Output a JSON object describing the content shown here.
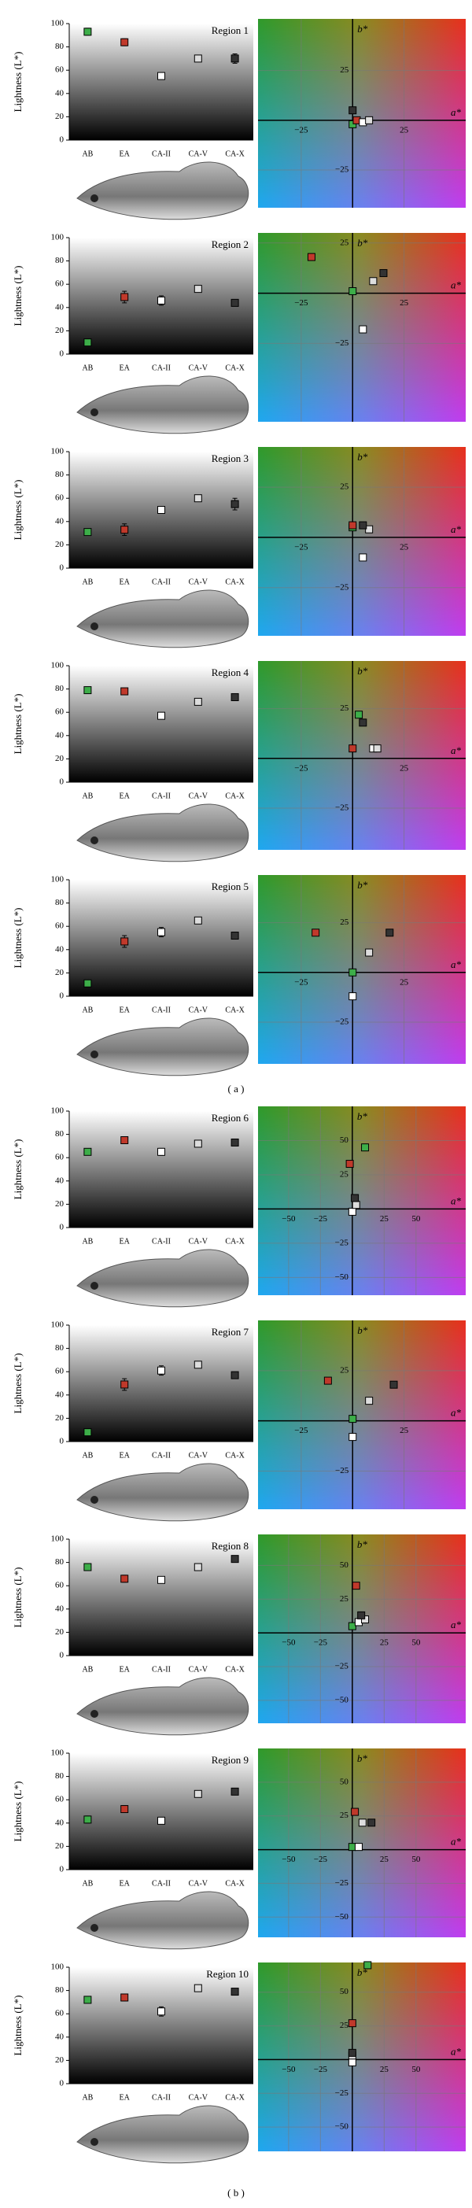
{
  "panels": [
    "( a )",
    "( b )"
  ],
  "chart_data": [
    {
      "type": "dot",
      "title": "Region 1",
      "ylabel": "Lightness (L*)",
      "categories": [
        "AB",
        "EA",
        "CA-II",
        "CA-V",
        "CA-X"
      ],
      "values": [
        93,
        84,
        55,
        70,
        70
      ],
      "errors": [
        3,
        3,
        2,
        2,
        4
      ],
      "colors": [
        "#3dae49",
        "#c0392b",
        "#ffffff",
        "#dddddd",
        "#333333"
      ],
      "ylim": [
        0,
        100
      ],
      "yticks": [
        0,
        20,
        40,
        60,
        80,
        100
      ]
    },
    {
      "type": "scatter",
      "xlabel": "a*",
      "ylabel": "b*",
      "x": [
        0,
        2,
        5,
        8,
        0
      ],
      "values": [
        -2,
        0,
        -1,
        0,
        5
      ],
      "colors": [
        "#3dae49",
        "#c0392b",
        "#ffffff",
        "#dddddd",
        "#333333"
      ],
      "xlim": [
        -46,
        55
      ],
      "ylim": [
        -44,
        51
      ],
      "xticks": [
        {
          "value": -25,
          "label": "−25"
        },
        25
      ],
      "yticks": [
        25,
        {
          "value": -25,
          "label": "−25"
        }
      ],
      "grid": true
    },
    {
      "type": "dot",
      "title": "Region 2",
      "ylabel": "Lightness (L*)",
      "categories": [
        "AB",
        "EA",
        "CA-II",
        "CA-V",
        "CA-X"
      ],
      "values": [
        10,
        49,
        46,
        56,
        44
      ],
      "errors": [
        2,
        5,
        4,
        2,
        2
      ],
      "colors": [
        "#3dae49",
        "#c0392b",
        "#ffffff",
        "#dddddd",
        "#333333"
      ],
      "ylim": [
        0,
        100
      ],
      "yticks": [
        0,
        20,
        40,
        60,
        80,
        100
      ]
    },
    {
      "type": "scatter",
      "xlabel": "a*",
      "ylabel": "b*",
      "x": [
        0,
        -20,
        5,
        10,
        15
      ],
      "values": [
        1,
        18,
        -18,
        6,
        10
      ],
      "colors": [
        "#3dae49",
        "#c0392b",
        "#ffffff",
        "#dddddd",
        "#333333"
      ],
      "xlim": [
        -46,
        55
      ],
      "ylim": [
        -64,
        30
      ],
      "xticks": [
        {
          "value": -25,
          "label": "−25"
        },
        25
      ],
      "yticks": [
        25,
        {
          "value": -25,
          "label": "−25"
        }
      ],
      "grid": true
    },
    {
      "type": "dot",
      "title": "Region 3",
      "ylabel": "Lightness (L*)",
      "categories": [
        "AB",
        "EA",
        "CA-II",
        "CA-V",
        "CA-X"
      ],
      "values": [
        31,
        33,
        50,
        60,
        55
      ],
      "errors": [
        2,
        5,
        3,
        2,
        5
      ],
      "colors": [
        "#3dae49",
        "#c0392b",
        "#ffffff",
        "#dddddd",
        "#333333"
      ],
      "ylim": [
        0,
        100
      ],
      "yticks": [
        0,
        20,
        40,
        60,
        80,
        100
      ]
    },
    {
      "type": "scatter",
      "xlabel": "a*",
      "ylabel": "b*",
      "x": [
        0,
        0,
        5,
        8,
        5
      ],
      "values": [
        5,
        6,
        -10,
        4,
        6
      ],
      "colors": [
        "#3dae49",
        "#c0392b",
        "#ffffff",
        "#dddddd",
        "#333333"
      ],
      "xlim": [
        -46,
        55
      ],
      "ylim": [
        -49,
        45
      ],
      "xticks": [
        {
          "value": -25,
          "label": "−25"
        },
        25
      ],
      "yticks": [
        25,
        {
          "value": -25,
          "label": "−25"
        }
      ],
      "grid": true
    },
    {
      "type": "dot",
      "title": "Region 4",
      "ylabel": "Lightness (L*)",
      "categories": [
        "AB",
        "EA",
        "CA-II",
        "CA-V",
        "CA-X"
      ],
      "values": [
        79,
        78,
        57,
        69,
        73
      ],
      "errors": [
        2,
        2,
        2,
        2,
        3
      ],
      "colors": [
        "#3dae49",
        "#c0392b",
        "#ffffff",
        "#dddddd",
        "#333333"
      ],
      "ylim": [
        0,
        100
      ],
      "yticks": [
        0,
        20,
        40,
        60,
        80,
        100
      ]
    },
    {
      "type": "scatter",
      "xlabel": "a*",
      "ylabel": "b*",
      "x": [
        3,
        0,
        10,
        12,
        5
      ],
      "values": [
        22,
        5,
        5,
        5,
        18
      ],
      "colors": [
        "#3dae49",
        "#c0392b",
        "#ffffff",
        "#dddddd",
        "#333333"
      ],
      "xlim": [
        -46,
        55
      ],
      "ylim": [
        -46,
        49
      ],
      "xticks": [
        {
          "value": -25,
          "label": "−25"
        },
        25
      ],
      "yticks": [
        25,
        {
          "value": -25,
          "label": "−25"
        }
      ],
      "grid": true
    },
    {
      "type": "dot",
      "title": "Region 5",
      "ylabel": "Lightness (L*)",
      "categories": [
        "AB",
        "EA",
        "CA-II",
        "CA-V",
        "CA-X"
      ],
      "values": [
        11,
        47,
        55,
        65,
        52
      ],
      "errors": [
        1,
        5,
        4,
        2,
        3
      ],
      "colors": [
        "#3dae49",
        "#c0392b",
        "#ffffff",
        "#dddddd",
        "#333333"
      ],
      "ylim": [
        0,
        100
      ],
      "yticks": [
        0,
        20,
        40,
        60,
        80,
        100
      ]
    },
    {
      "type": "scatter",
      "xlabel": "a*",
      "ylabel": "b*",
      "x": [
        0,
        -18,
        0,
        8,
        18
      ],
      "values": [
        0,
        20,
        -12,
        10,
        20
      ],
      "colors": [
        "#3dae49",
        "#c0392b",
        "#ffffff",
        "#dddddd",
        "#333333"
      ],
      "xlim": [
        -46,
        55
      ],
      "ylim": [
        -46,
        49
      ],
      "xticks": [
        {
          "value": -25,
          "label": "−25"
        },
        25
      ],
      "yticks": [
        25,
        {
          "value": -25,
          "label": "−25"
        }
      ],
      "grid": true
    },
    {
      "type": "dot",
      "title": "Region 6",
      "ylabel": "Lightness (L*)",
      "categories": [
        "AB",
        "EA",
        "CA-II",
        "CA-V",
        "CA-X"
      ],
      "values": [
        65,
        75,
        65,
        72,
        73
      ],
      "errors": [
        2,
        3,
        3,
        2,
        1
      ],
      "colors": [
        "#3dae49",
        "#c0392b",
        "#ffffff",
        "#dddddd",
        "#333333"
      ],
      "ylim": [
        0,
        100
      ],
      "yticks": [
        0,
        20,
        40,
        60,
        80,
        100
      ]
    },
    {
      "type": "scatter",
      "xlabel": "a*",
      "ylabel": "b*",
      "x": [
        10,
        -2,
        0,
        3,
        2
      ],
      "values": [
        45,
        33,
        -2,
        3,
        8
      ],
      "colors": [
        "#3dae49",
        "#c0392b",
        "#ffffff",
        "#dddddd",
        "#333333"
      ],
      "xlim": [
        -74,
        89
      ],
      "ylim": [
        -63,
        75
      ],
      "xticks": [
        {
          "value": -50,
          "label": "−50"
        },
        {
          "value": -25,
          "label": "−25"
        },
        25,
        50
      ],
      "yticks": [
        50,
        25,
        {
          "value": -25,
          "label": "−25"
        },
        {
          "value": -50,
          "label": "−50"
        }
      ],
      "grid": true
    },
    {
      "type": "dot",
      "title": "Region 7",
      "ylabel": "Lightness (L*)",
      "categories": [
        "AB",
        "EA",
        "CA-II",
        "CA-V",
        "CA-X"
      ],
      "values": [
        8,
        49,
        61,
        66,
        57
      ],
      "errors": [
        1,
        5,
        4,
        2,
        2
      ],
      "colors": [
        "#3dae49",
        "#c0392b",
        "#ffffff",
        "#dddddd",
        "#333333"
      ],
      "ylim": [
        0,
        100
      ],
      "yticks": [
        0,
        20,
        40,
        60,
        80,
        100
      ]
    },
    {
      "type": "scatter",
      "xlabel": "a*",
      "ylabel": "b*",
      "x": [
        0,
        -12,
        0,
        8,
        20
      ],
      "values": [
        1,
        20,
        -8,
        10,
        18
      ],
      "colors": [
        "#3dae49",
        "#c0392b",
        "#ffffff",
        "#dddddd",
        "#333333"
      ],
      "xlim": [
        -46,
        55
      ],
      "ylim": [
        -44,
        50
      ],
      "xticks": [
        {
          "value": -25,
          "label": "−25"
        },
        25
      ],
      "yticks": [
        25,
        {
          "value": -25,
          "label": "−25"
        }
      ],
      "grid": true
    },
    {
      "type": "dot",
      "title": "Region 8",
      "ylabel": "Lightness (L*)",
      "categories": [
        "AB",
        "EA",
        "CA-II",
        "CA-V",
        "CA-X"
      ],
      "values": [
        76,
        66,
        65,
        76,
        83
      ],
      "errors": [
        2,
        3,
        2,
        2,
        1
      ],
      "colors": [
        "#3dae49",
        "#c0392b",
        "#ffffff",
        "#dddddd",
        "#333333"
      ],
      "ylim": [
        0,
        100
      ],
      "yticks": [
        0,
        20,
        40,
        60,
        80,
        100
      ]
    },
    {
      "type": "scatter",
      "xlabel": "a*",
      "ylabel": "b*",
      "x": [
        0,
        3,
        5,
        10,
        7
      ],
      "values": [
        5,
        35,
        8,
        10,
        13
      ],
      "colors": [
        "#3dae49",
        "#c0392b",
        "#ffffff",
        "#dddddd",
        "#333333"
      ],
      "xlim": [
        -74,
        89
      ],
      "ylim": [
        -67,
        73
      ],
      "xticks": [
        {
          "value": -50,
          "label": "−50"
        },
        {
          "value": -25,
          "label": "−25"
        },
        25,
        50
      ],
      "yticks": [
        50,
        25,
        {
          "value": -25,
          "label": "−25"
        },
        {
          "value": -50,
          "label": "−50"
        }
      ],
      "grid": true
    },
    {
      "type": "dot",
      "title": "Region 9",
      "ylabel": "Lightness (L*)",
      "categories": [
        "AB",
        "EA",
        "CA-II",
        "CA-V",
        "CA-X"
      ],
      "values": [
        43,
        52,
        42,
        65,
        67
      ],
      "errors": [
        3,
        3,
        2,
        2,
        1
      ],
      "colors": [
        "#3dae49",
        "#c0392b",
        "#ffffff",
        "#dddddd",
        "#333333"
      ],
      "ylim": [
        0,
        100
      ],
      "yticks": [
        0,
        20,
        40,
        60,
        80,
        100
      ]
    },
    {
      "type": "scatter",
      "xlabel": "a*",
      "ylabel": "b*",
      "x": [
        0,
        2,
        5,
        8,
        15
      ],
      "values": [
        2,
        28,
        2,
        20,
        20
      ],
      "colors": [
        "#3dae49",
        "#c0392b",
        "#ffffff",
        "#dddddd",
        "#333333"
      ],
      "xlim": [
        -74,
        89
      ],
      "ylim": [
        -65,
        75
      ],
      "xticks": [
        {
          "value": -50,
          "label": "−50"
        },
        {
          "value": -25,
          "label": "−25"
        },
        25,
        50
      ],
      "yticks": [
        50,
        25,
        {
          "value": -25,
          "label": "−25"
        },
        {
          "value": -50,
          "label": "−50"
        }
      ],
      "grid": true
    },
    {
      "type": "dot",
      "title": "Region 10",
      "ylabel": "Lightness (L*)",
      "categories": [
        "AB",
        "EA",
        "CA-II",
        "CA-V",
        "CA-X"
      ],
      "values": [
        72,
        74,
        62,
        82,
        79
      ],
      "errors": [
        2,
        3,
        4,
        2,
        1
      ],
      "colors": [
        "#3dae49",
        "#c0392b",
        "#ffffff",
        "#dddddd",
        "#333333"
      ],
      "ylim": [
        0,
        100
      ],
      "yticks": [
        0,
        20,
        40,
        60,
        80,
        100
      ]
    },
    {
      "type": "scatter",
      "xlabel": "a*",
      "ylabel": "b*",
      "x": [
        12,
        0,
        0,
        0,
        0
      ],
      "values": [
        70,
        27,
        -2,
        3,
        5
      ],
      "colors": [
        "#3dae49",
        "#c0392b",
        "#ffffff",
        "#dddddd",
        "#333333"
      ],
      "xlim": [
        -74,
        89
      ],
      "ylim": [
        -68,
        72
      ],
      "xticks": [
        {
          "value": -50,
          "label": "−50"
        },
        {
          "value": -25,
          "label": "−25"
        },
        25,
        50
      ],
      "yticks": [
        50,
        25,
        {
          "value": -25,
          "label": "−25"
        },
        {
          "value": -50,
          "label": "−50"
        }
      ],
      "grid": true
    }
  ]
}
